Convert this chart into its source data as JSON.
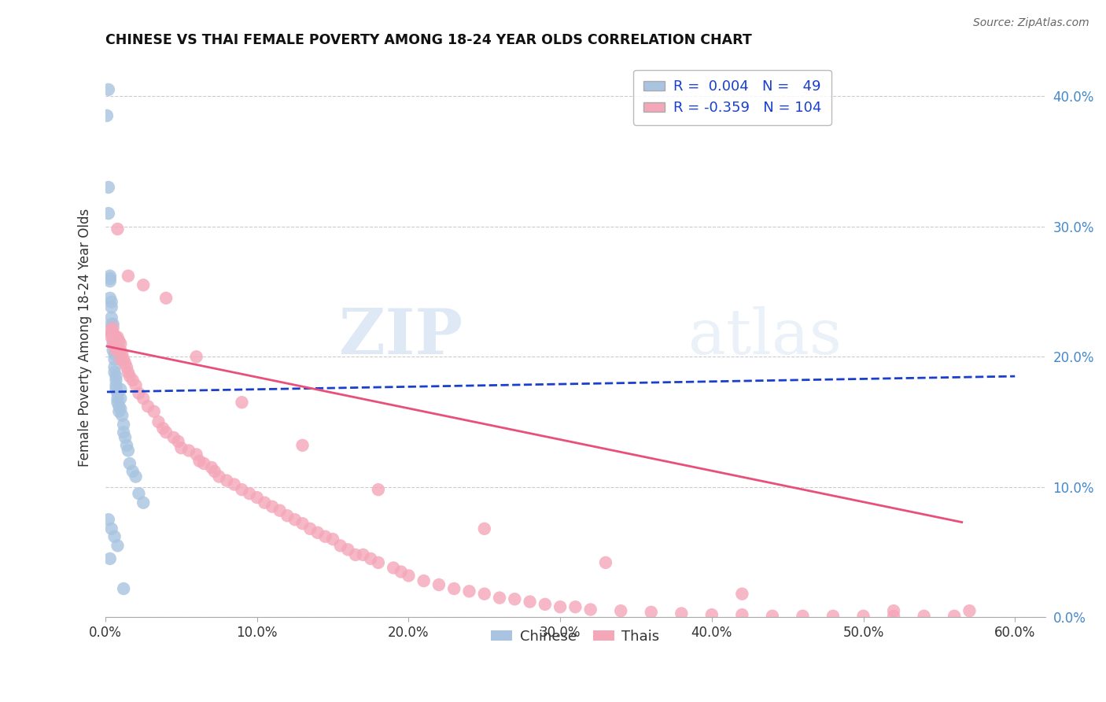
{
  "title": "CHINESE VS THAI FEMALE POVERTY AMONG 18-24 YEAR OLDS CORRELATION CHART",
  "source": "Source: ZipAtlas.com",
  "ylabel": "Female Poverty Among 18-24 Year Olds",
  "xlim": [
    0.0,
    0.62
  ],
  "ylim": [
    0.0,
    0.43
  ],
  "x_ticks": [
    0.0,
    0.1,
    0.2,
    0.3,
    0.4,
    0.5,
    0.6
  ],
  "y_ticks": [
    0.0,
    0.1,
    0.2,
    0.3,
    0.4
  ],
  "chinese_R": 0.004,
  "chinese_N": 49,
  "thai_R": -0.359,
  "thai_N": 104,
  "chinese_color": "#a8c4e0",
  "thai_color": "#f4a7b9",
  "chinese_line_color": "#1a3fcc",
  "thai_line_color": "#e8507a",
  "watermark_zip": "ZIP",
  "watermark_atlas": "atlas",
  "chinese_x": [
    0.001,
    0.002,
    0.002,
    0.002,
    0.003,
    0.003,
    0.003,
    0.003,
    0.004,
    0.004,
    0.004,
    0.004,
    0.005,
    0.005,
    0.005,
    0.005,
    0.006,
    0.006,
    0.006,
    0.006,
    0.007,
    0.007,
    0.007,
    0.007,
    0.008,
    0.008,
    0.008,
    0.009,
    0.009,
    0.01,
    0.01,
    0.01,
    0.011,
    0.012,
    0.012,
    0.013,
    0.014,
    0.015,
    0.016,
    0.018,
    0.02,
    0.022,
    0.025,
    0.002,
    0.004,
    0.006,
    0.008,
    0.003,
    0.012
  ],
  "chinese_y": [
    0.385,
    0.405,
    0.31,
    0.33,
    0.26,
    0.262,
    0.258,
    0.245,
    0.242,
    0.238,
    0.23,
    0.225,
    0.225,
    0.218,
    0.21,
    0.205,
    0.202,
    0.198,
    0.192,
    0.188,
    0.185,
    0.182,
    0.178,
    0.175,
    0.172,
    0.168,
    0.165,
    0.162,
    0.158,
    0.175,
    0.168,
    0.16,
    0.155,
    0.148,
    0.142,
    0.138,
    0.132,
    0.128,
    0.118,
    0.112,
    0.108,
    0.095,
    0.088,
    0.075,
    0.068,
    0.062,
    0.055,
    0.045,
    0.022
  ],
  "thai_x": [
    0.003,
    0.004,
    0.004,
    0.005,
    0.005,
    0.005,
    0.006,
    0.006,
    0.007,
    0.007,
    0.008,
    0.008,
    0.008,
    0.009,
    0.009,
    0.01,
    0.01,
    0.01,
    0.011,
    0.012,
    0.013,
    0.014,
    0.015,
    0.016,
    0.018,
    0.02,
    0.022,
    0.025,
    0.028,
    0.032,
    0.035,
    0.038,
    0.04,
    0.045,
    0.048,
    0.05,
    0.055,
    0.06,
    0.062,
    0.065,
    0.07,
    0.072,
    0.075,
    0.08,
    0.085,
    0.09,
    0.095,
    0.1,
    0.105,
    0.11,
    0.115,
    0.12,
    0.125,
    0.13,
    0.135,
    0.14,
    0.145,
    0.15,
    0.155,
    0.16,
    0.165,
    0.17,
    0.175,
    0.18,
    0.19,
    0.195,
    0.2,
    0.21,
    0.22,
    0.23,
    0.24,
    0.25,
    0.26,
    0.27,
    0.28,
    0.29,
    0.3,
    0.31,
    0.32,
    0.34,
    0.36,
    0.38,
    0.4,
    0.42,
    0.44,
    0.46,
    0.48,
    0.5,
    0.52,
    0.54,
    0.56,
    0.008,
    0.015,
    0.025,
    0.04,
    0.06,
    0.09,
    0.13,
    0.18,
    0.25,
    0.33,
    0.42,
    0.52,
    0.57
  ],
  "thai_y": [
    0.22,
    0.218,
    0.215,
    0.222,
    0.218,
    0.212,
    0.215,
    0.208,
    0.215,
    0.205,
    0.215,
    0.21,
    0.205,
    0.212,
    0.205,
    0.21,
    0.205,
    0.198,
    0.202,
    0.198,
    0.195,
    0.192,
    0.188,
    0.185,
    0.182,
    0.178,
    0.172,
    0.168,
    0.162,
    0.158,
    0.15,
    0.145,
    0.142,
    0.138,
    0.135,
    0.13,
    0.128,
    0.125,
    0.12,
    0.118,
    0.115,
    0.112,
    0.108,
    0.105,
    0.102,
    0.098,
    0.095,
    0.092,
    0.088,
    0.085,
    0.082,
    0.078,
    0.075,
    0.072,
    0.068,
    0.065,
    0.062,
    0.06,
    0.055,
    0.052,
    0.048,
    0.048,
    0.045,
    0.042,
    0.038,
    0.035,
    0.032,
    0.028,
    0.025,
    0.022,
    0.02,
    0.018,
    0.015,
    0.014,
    0.012,
    0.01,
    0.008,
    0.008,
    0.006,
    0.005,
    0.004,
    0.003,
    0.002,
    0.002,
    0.001,
    0.001,
    0.001,
    0.001,
    0.001,
    0.001,
    0.001,
    0.298,
    0.262,
    0.255,
    0.245,
    0.2,
    0.165,
    0.132,
    0.098,
    0.068,
    0.042,
    0.018,
    0.005,
    0.005
  ],
  "chinese_line_y0": 0.173,
  "chinese_line_y1": 0.185,
  "thai_line_y0": 0.208,
  "thai_line_y1": 0.073
}
